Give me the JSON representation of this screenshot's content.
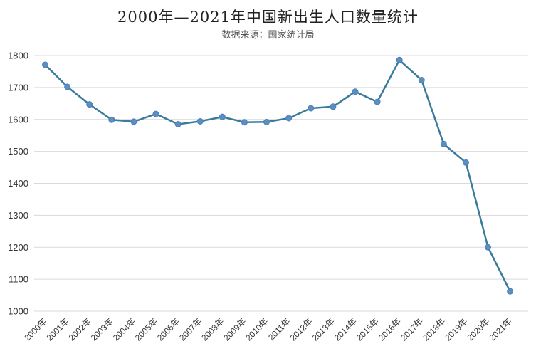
{
  "chart_data": {
    "type": "line",
    "title": "2000年—2021年中国新出生人口数量统计",
    "subtitle": "数据来源：国家统计局",
    "xlabel": "",
    "ylabel": "",
    "categories": [
      "2000年",
      "2001年",
      "2002年",
      "2003年",
      "2004年",
      "2005年",
      "2006年",
      "2007年",
      "2008年",
      "2009年",
      "2010年",
      "2011年",
      "2012年",
      "2013年",
      "2014年",
      "2015年",
      "2016年",
      "2017年",
      "2018年",
      "2019年",
      "2020年",
      "2021年"
    ],
    "values": [
      1771,
      1702,
      1647,
      1599,
      1593,
      1617,
      1585,
      1594,
      1608,
      1591,
      1592,
      1604,
      1635,
      1640,
      1687,
      1655,
      1786,
      1723,
      1523,
      1465,
      1200,
      1062
    ],
    "ylim": [
      1000,
      1800
    ],
    "yticks": [
      1000,
      1100,
      1200,
      1300,
      1400,
      1500,
      1600,
      1700,
      1800
    ],
    "grid": true,
    "colors": {
      "line": "#3a7a9c",
      "marker": "#5b8fc4",
      "grid": "#d9d9d9"
    }
  }
}
